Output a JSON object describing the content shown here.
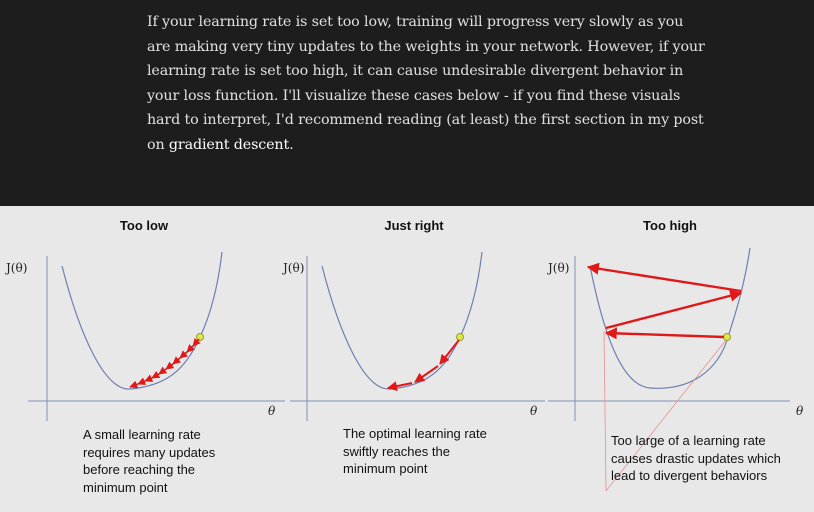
{
  "article": {
    "text": "If your learning rate is set too low, training will progress very slowly as you are making very tiny updates to the weights in your network. However, if your learning rate is set too high, it can cause undesirable divergent behavior in your loss function. I'll visualize these cases below - if you find these visuals hard to interpret, I'd recommend reading (at least) the first section in my post on ",
    "link_text": "gradient descent",
    "end": "."
  },
  "figure": {
    "panels": [
      {
        "title": "Too low",
        "caption": "A small learning rate requires many updates before reaching the minimum point"
      },
      {
        "title": "Just right",
        "caption": "The optimal learning rate swiftly reaches the minimum point"
      },
      {
        "title": "Too high",
        "caption": "Too large of a learning rate causes drastic updates which lead to divergent behaviors"
      }
    ],
    "y_label": "J(θ)",
    "x_label": "θ",
    "colors": {
      "curve": "#6f7fb0",
      "arrow": "#e01818",
      "point": "#dde84a",
      "background": "#e8e8e8"
    }
  }
}
